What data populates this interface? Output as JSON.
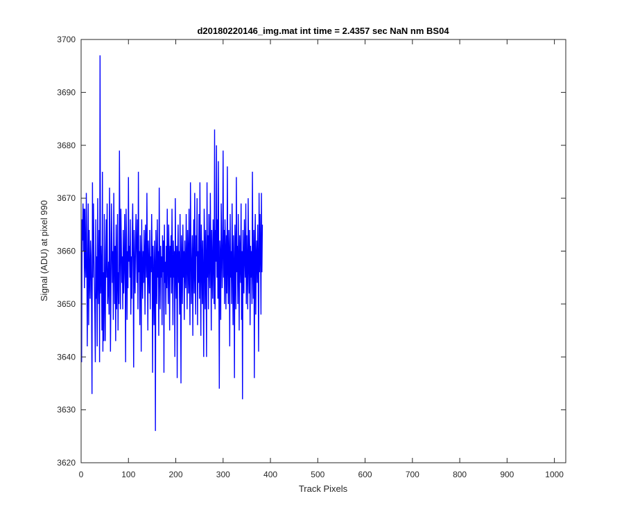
{
  "chart_data": {
    "type": "line",
    "title": "d20180220146_img.mat int time = 2.4357 sec  NaN nm BS04",
    "xlabel": "Track Pixels",
    "ylabel": "Signal (ADU) at pixel 990",
    "xlim": [
      0,
      1024
    ],
    "ylim": [
      3620,
      3700
    ],
    "x_ticks": [
      0,
      100,
      200,
      300,
      400,
      500,
      600,
      700,
      800,
      900,
      1000
    ],
    "y_ticks": [
      3620,
      3630,
      3640,
      3650,
      3660,
      3670,
      3680,
      3690,
      3700
    ],
    "grid": false,
    "line_color": "#0000ff",
    "series": [
      {
        "name": "",
        "x_start": 1,
        "x_step": 1,
        "values": [
          3639,
          3666,
          3662,
          3669,
          3660,
          3668,
          3653,
          3668,
          3658,
          3655,
          3671,
          3660,
          3642,
          3657,
          3669,
          3646,
          3664,
          3655,
          3651,
          3662,
          3659,
          3650,
          3633,
          3673,
          3655,
          3669,
          3660,
          3654,
          3648,
          3639,
          3666,
          3651,
          3659,
          3642,
          3670,
          3655,
          3650,
          3664,
          3639,
          3697,
          3652,
          3661,
          3656,
          3645,
          3675,
          3641,
          3656,
          3643,
          3667,
          3652,
          3643,
          3660,
          3666,
          3655,
          3669,
          3650,
          3653,
          3658,
          3648,
          3672,
          3661,
          3641,
          3652,
          3669,
          3662,
          3654,
          3660,
          3647,
          3671,
          3659,
          3650,
          3661,
          3643,
          3665,
          3649,
          3655,
          3667,
          3645,
          3656,
          3650,
          3679,
          3661,
          3649,
          3668,
          3662,
          3654,
          3659,
          3649,
          3664,
          3652,
          3656,
          3667,
          3658,
          3639,
          3668,
          3662,
          3647,
          3660,
          3653,
          3674,
          3658,
          3661,
          3655,
          3666,
          3648,
          3659,
          3651,
          3663,
          3669,
          3657,
          3638,
          3664,
          3656,
          3652,
          3662,
          3667,
          3660,
          3654,
          3666,
          3649,
          3675,
          3656,
          3660,
          3646,
          3663,
          3658,
          3641,
          3666,
          3657,
          3651,
          3660,
          3654,
          3664,
          3659,
          3648,
          3665,
          3661,
          3655,
          3671,
          3658,
          3645,
          3662,
          3657,
          3652,
          3664,
          3649,
          3659,
          3656,
          3667,
          3660,
          3637,
          3661,
          3655,
          3646,
          3662,
          3657,
          3626,
          3664,
          3658,
          3650,
          3666,
          3655,
          3660,
          3644,
          3672,
          3657,
          3649,
          3661,
          3655,
          3659,
          3646,
          3663,
          3656,
          3662,
          3637,
          3665,
          3654,
          3658,
          3648,
          3661,
          3653,
          3668,
          3657,
          3650,
          3665,
          3659,
          3645,
          3661,
          3655,
          3663,
          3652,
          3668,
          3657,
          3646,
          3662,
          3655,
          3660,
          3640,
          3670,
          3657,
          3651,
          3661,
          3636,
          3659,
          3665,
          3654,
          3660,
          3648,
          3667,
          3656,
          3635,
          3663,
          3658,
          3650,
          3665,
          3655,
          3660,
          3647,
          3662,
          3656,
          3653,
          3667,
          3658,
          3649,
          3664,
          3659,
          3652,
          3668,
          3655,
          3646,
          3673,
          3661,
          3650,
          3657,
          3663,
          3644,
          3659,
          3666,
          3652,
          3671,
          3656,
          3648,
          3663,
          3659,
          3670,
          3646,
          3660,
          3654,
          3667,
          3651,
          3673,
          3657,
          3644,
          3665,
          3659,
          3650,
          3662,
          3655,
          3640,
          3668,
          3661,
          3649,
          3664,
          3657,
          3640,
          3673,
          3655,
          3663,
          3649,
          3667,
          3658,
          3653,
          3671,
          3660,
          3645,
          3664,
          3657,
          3651,
          3666,
          3659,
          3650,
          3683,
          3649,
          3664,
          3658,
          3680,
          3655,
          3666,
          3651,
          3677,
          3655,
          3634,
          3662,
          3659,
          3647,
          3669,
          3661,
          3653,
          3660,
          3679,
          3655,
          3664,
          3650,
          3666,
          3660,
          3649,
          3663,
          3652,
          3676,
          3657,
          3650,
          3664,
          3659,
          3642,
          3667,
          3655,
          3660,
          3650,
          3669,
          3658,
          3646,
          3663,
          3657,
          3636,
          3665,
          3660,
          3649,
          3674,
          3656,
          3661,
          3650,
          3667,
          3658,
          3645,
          3663,
          3659,
          3654,
          3669,
          3647,
          3660,
          3632,
          3664,
          3657,
          3652,
          3666,
          3659,
          3655,
          3669,
          3650,
          3663,
          3657,
          3649,
          3670,
          3658,
          3652,
          3664,
          3646,
          3661,
          3655,
          3660,
          3650,
          3675,
          3657,
          3651,
          3664,
          3636,
          3660,
          3667,
          3648,
          3659,
          3662,
          3654,
          3665,
          3657,
          3641,
          3671,
          3656,
          3667,
          3660,
          3648,
          3671,
          3656,
          3665
        ]
      }
    ]
  }
}
